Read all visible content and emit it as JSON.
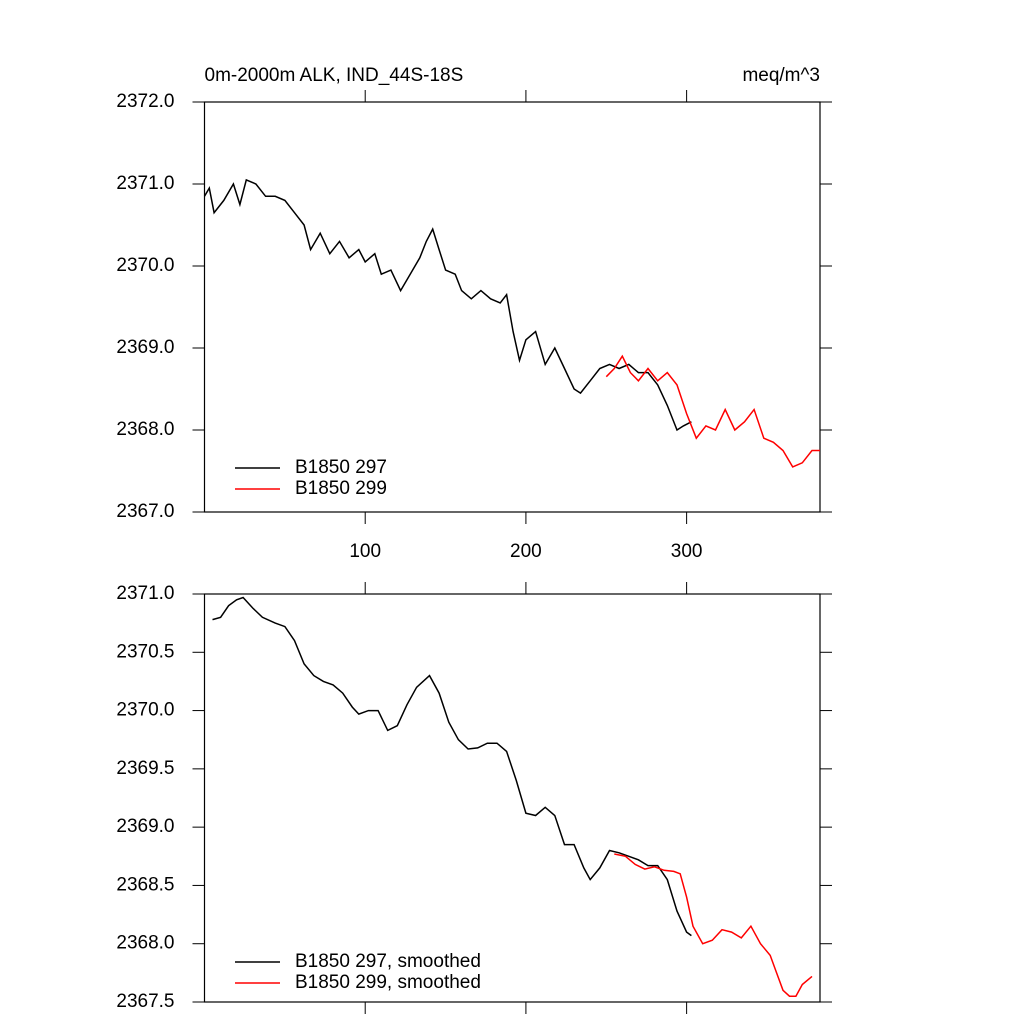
{
  "chart_data": [
    {
      "type": "line",
      "title": "0m-2000m ALK, IND_44S-18S",
      "subtitle": "meq/m^3",
      "xlim": [
        0,
        383
      ],
      "xticks": [
        100,
        200,
        300
      ],
      "ylim": [
        2367,
        2372
      ],
      "yticks": [
        {
          "value": 2367,
          "label": "2367.0"
        },
        {
          "value": 2368,
          "label": "2368.0"
        },
        {
          "value": 2369,
          "label": "2369.0"
        },
        {
          "value": 2370,
          "label": "2370.0"
        },
        {
          "value": 2371,
          "label": "2371.0"
        },
        {
          "value": 2372,
          "label": "2372.0"
        }
      ],
      "series": [
        {
          "name": "B1850 297",
          "color": "#000000",
          "x": [
            0,
            3,
            6,
            12,
            18,
            22,
            26,
            32,
            38,
            44,
            50,
            56,
            62,
            66,
            72,
            78,
            84,
            90,
            96,
            100,
            106,
            110,
            116,
            122,
            128,
            134,
            138,
            142,
            146,
            150,
            156,
            160,
            166,
            172,
            178,
            184,
            188,
            192,
            196,
            200,
            206,
            212,
            218,
            224,
            230,
            234,
            240,
            246,
            252,
            258,
            264,
            270,
            276,
            282,
            288,
            294,
            298,
            303
          ],
          "values": [
            2370.85,
            2370.95,
            2370.65,
            2370.8,
            2371.0,
            2370.75,
            2371.05,
            2371.0,
            2370.85,
            2370.85,
            2370.8,
            2370.65,
            2370.5,
            2370.2,
            2370.4,
            2370.15,
            2370.3,
            2370.1,
            2370.2,
            2370.05,
            2370.15,
            2369.9,
            2369.95,
            2369.7,
            2369.9,
            2370.1,
            2370.3,
            2370.45,
            2370.2,
            2369.95,
            2369.9,
            2369.7,
            2369.6,
            2369.7,
            2369.6,
            2369.55,
            2369.65,
            2369.2,
            2368.85,
            2369.1,
            2369.2,
            2368.8,
            2369.0,
            2368.75,
            2368.5,
            2368.45,
            2368.6,
            2368.75,
            2368.8,
            2368.75,
            2368.8,
            2368.7,
            2368.7,
            2368.55,
            2368.3,
            2368.0,
            2368.05,
            2368.1
          ]
        },
        {
          "name": "B1850 299",
          "color": "#ff0000",
          "x": [
            250,
            255,
            260,
            265,
            270,
            276,
            282,
            288,
            294,
            300,
            306,
            312,
            318,
            324,
            330,
            336,
            342,
            348,
            354,
            360,
            366,
            372,
            378,
            383
          ],
          "values": [
            2368.65,
            2368.75,
            2368.9,
            2368.7,
            2368.6,
            2368.75,
            2368.6,
            2368.7,
            2368.55,
            2368.2,
            2367.9,
            2368.05,
            2368.0,
            2368.25,
            2368.0,
            2368.1,
            2368.25,
            2367.9,
            2367.85,
            2367.75,
            2367.55,
            2367.6,
            2367.75,
            2367.75
          ]
        }
      ]
    },
    {
      "type": "line",
      "xlim": [
        0,
        383
      ],
      "ylim": [
        2367.5,
        2371
      ],
      "yticks": [
        {
          "value": 2367.5,
          "label": "2367.5"
        },
        {
          "value": 2368,
          "label": "2368.0"
        },
        2368.5,
        {
          "value": 2369,
          "label": "2369.0"
        },
        2369.5,
        {
          "value": 2370,
          "label": "2370.0"
        },
        2370.5,
        {
          "value": 2371,
          "label": "2371.0"
        }
      ],
      "series": [
        {
          "name": "B1850 297, smoothed",
          "color": "#000000",
          "x": [
            5,
            10,
            15,
            20,
            24,
            30,
            36,
            44,
            50,
            56,
            62,
            68,
            74,
            80,
            86,
            92,
            96,
            102,
            108,
            114,
            120,
            126,
            132,
            140,
            146,
            152,
            158,
            164,
            170,
            176,
            182,
            188,
            194,
            200,
            206,
            212,
            218,
            224,
            230,
            236,
            240,
            246,
            252,
            258,
            264,
            270,
            276,
            282,
            288,
            294,
            300,
            303
          ],
          "values": [
            2370.78,
            2370.8,
            2370.9,
            2370.95,
            2370.97,
            2370.88,
            2370.8,
            2370.75,
            2370.72,
            2370.6,
            2370.4,
            2370.3,
            2370.25,
            2370.22,
            2370.15,
            2370.03,
            2369.97,
            2370.0,
            2370.0,
            2369.83,
            2369.87,
            2370.05,
            2370.2,
            2370.3,
            2370.15,
            2369.9,
            2369.75,
            2369.67,
            2369.68,
            2369.72,
            2369.72,
            2369.65,
            2369.4,
            2369.12,
            2369.1,
            2369.17,
            2369.1,
            2368.85,
            2368.85,
            2368.65,
            2368.55,
            2368.65,
            2368.8,
            2368.78,
            2368.75,
            2368.72,
            2368.67,
            2368.67,
            2368.55,
            2368.28,
            2368.1,
            2368.07
          ]
        },
        {
          "name": "B1850 299, smoothed",
          "color": "#ff0000",
          "x": [
            255,
            262,
            268,
            274,
            280,
            286,
            292,
            296,
            300,
            304,
            310,
            316,
            322,
            328,
            334,
            340,
            346,
            352,
            356,
            360,
            364,
            368,
            372,
            378
          ],
          "values": [
            2368.77,
            2368.75,
            2368.68,
            2368.64,
            2368.66,
            2368.63,
            2368.62,
            2368.6,
            2368.4,
            2368.15,
            2368.0,
            2368.03,
            2368.12,
            2368.1,
            2368.05,
            2368.15,
            2368.0,
            2367.9,
            2367.75,
            2367.6,
            2367.55,
            2367.55,
            2367.65,
            2367.72
          ]
        }
      ]
    }
  ]
}
